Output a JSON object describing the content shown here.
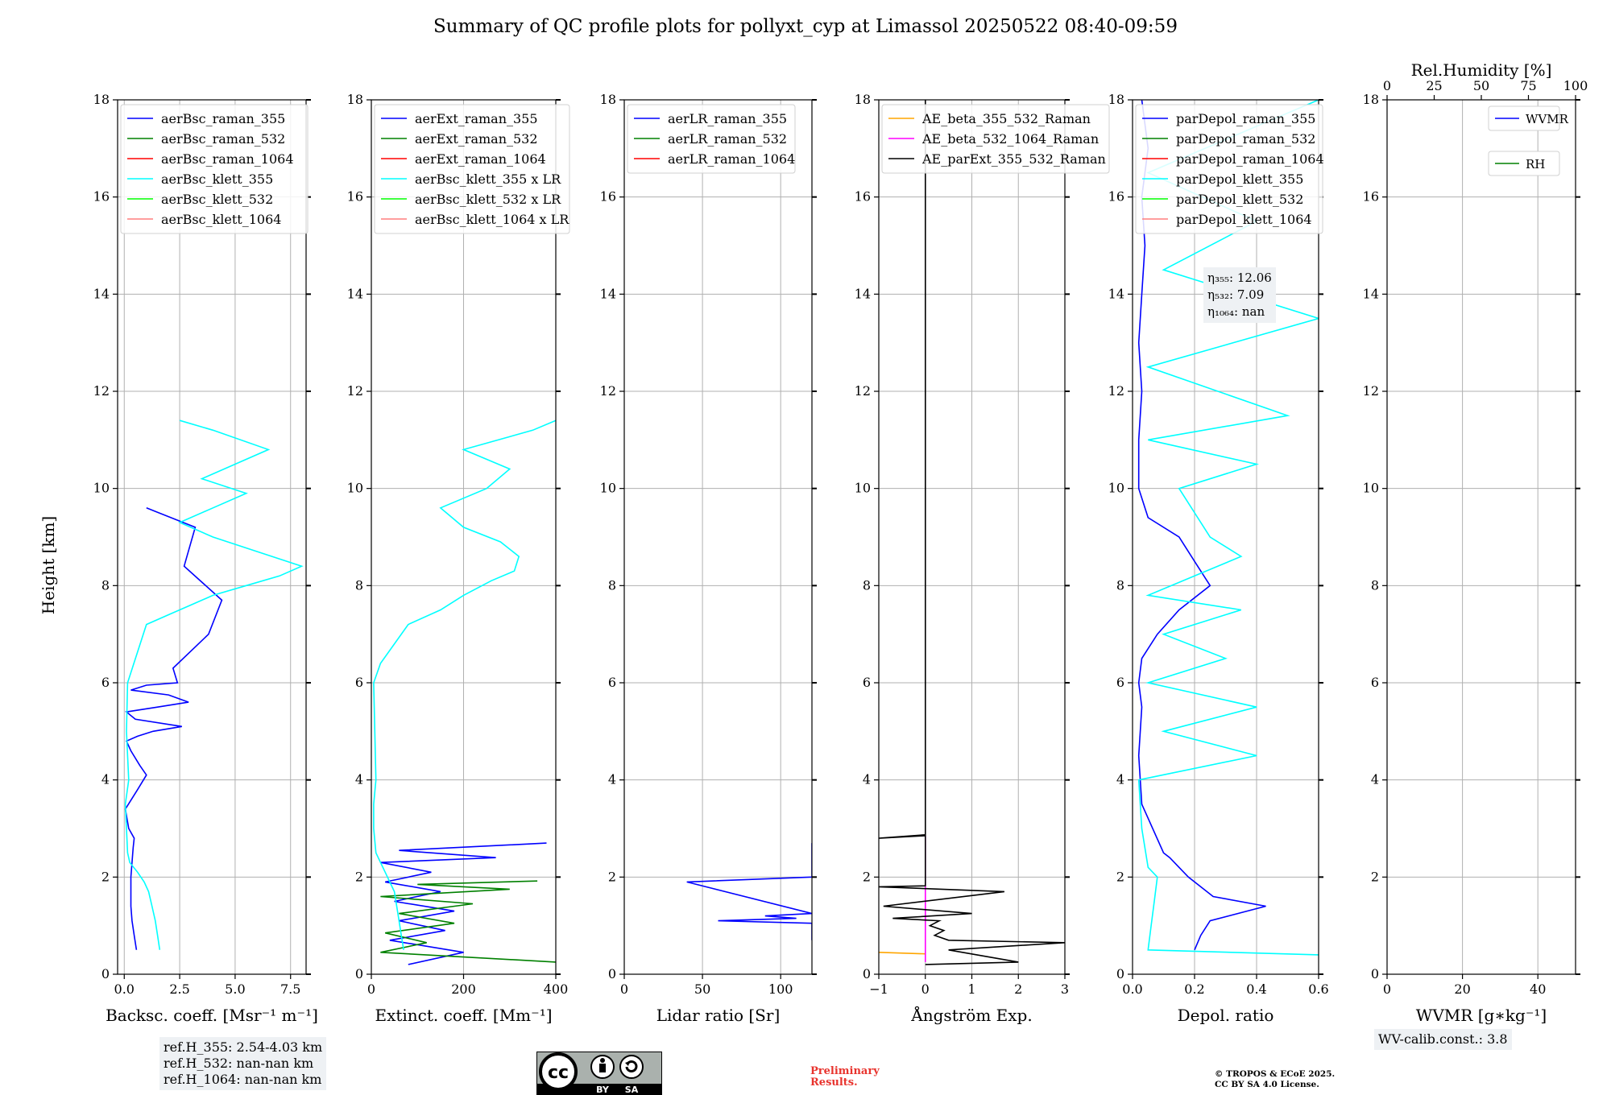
{
  "title": "Summary of QC profile plots for pollyxt_cyp at Limassol 20250522 08:40-09:59",
  "ylabel": "Height [km]",
  "ref_heights": [
    "ref.H_355: 2.54-4.03 km",
    "ref.H_532: nan-nan km",
    "ref.H_1064: nan-nan km"
  ],
  "wv_calib": "WV-calib.const.: 3.8",
  "eta_labels": [
    "η₃₅₅: 12.06",
    "η₅₃₂: 7.09",
    "η₁₀₆₄: nan"
  ],
  "preliminary": [
    "Preliminary",
    "Results."
  ],
  "copyright": [
    "© TROPOS & ECoE 2025.",
    "CC BY SA 4.0 License."
  ],
  "license_badge": {
    "cc": "cc",
    "by": "BY",
    "sa": "SA"
  },
  "colors": {
    "blue": "#0000ff",
    "green": "#008000",
    "red": "#ff0000",
    "cyan": "#00ffff",
    "lime": "#00ff00",
    "salmon": "#ff7f7f",
    "orange": "#ffa500",
    "magenta": "#ff00ff",
    "black": "#000000",
    "prelim_red": "#e8332d",
    "label_box": "#eef1f4"
  },
  "chart_data": [
    {
      "type": "line",
      "xlabel": "Backsc. coeff. [Msr⁻¹ m⁻¹]",
      "xlim": [
        -0.3,
        8.2
      ],
      "ylim": [
        0,
        18
      ],
      "xticks": [
        0,
        2.5,
        5,
        7.5
      ],
      "xtick_labels": [
        "0.0",
        "2.5",
        "5.0",
        "7.5"
      ],
      "yticks": [
        0,
        2,
        4,
        6,
        8,
        10,
        12,
        14,
        16,
        18
      ],
      "grid": true,
      "legend": "top-left",
      "legend_entries": [
        "aerBsc_raman_355",
        "aerBsc_raman_532",
        "aerBsc_raman_1064",
        "aerBsc_klett_355",
        "aerBsc_klett_532",
        "aerBsc_klett_1064"
      ],
      "legend_colors": [
        "#0000ff",
        "#008000",
        "#ff0000",
        "#00ffff",
        "#00ff00",
        "#ff7f7f"
      ],
      "series": [
        {
          "name": "aerBsc_raman_355",
          "color": "#0000ff",
          "x": [
            0.55,
            0.45,
            0.35,
            0.3,
            0.3,
            0.3,
            0.35,
            0.4,
            0.45,
            0.2,
            0.05,
            0.6,
            1.0,
            0.7,
            0.3,
            0.1,
            0.6,
            1.3,
            2.6,
            0.5,
            0.1,
            1.5,
            2.9,
            2.0,
            0.3,
            1.0,
            2.4,
            2.2,
            3.8,
            4.4,
            2.7,
            3.2,
            1.0
          ],
          "y": [
            0.5,
            0.8,
            1.1,
            1.4,
            1.7,
            2.0,
            2.3,
            2.6,
            2.8,
            3.0,
            3.4,
            3.8,
            4.1,
            4.3,
            4.6,
            4.8,
            4.9,
            5.0,
            5.1,
            5.25,
            5.4,
            5.5,
            5.6,
            5.75,
            5.85,
            5.95,
            6.0,
            6.3,
            7.0,
            7.7,
            8.4,
            9.2,
            9.6
          ]
        },
        {
          "name": "aerBsc_klett_355",
          "color": "#00ffff",
          "x": [
            1.6,
            1.5,
            1.4,
            1.25,
            1.1,
            0.9,
            0.6,
            0.25,
            0.15,
            0.1,
            0.05,
            0.2,
            0.1,
            0.15,
            1.0,
            2.0,
            3.0,
            4.0,
            5.5,
            7.0,
            8.0,
            6.0,
            4.0,
            2.5,
            4.0,
            5.5,
            3.5,
            5.0,
            6.5,
            4.0,
            2.5
          ],
          "y": [
            0.5,
            0.8,
            1.1,
            1.4,
            1.7,
            1.9,
            2.1,
            2.3,
            2.5,
            3.0,
            3.5,
            4.0,
            5.0,
            6.0,
            7.2,
            7.4,
            7.6,
            7.8,
            8.0,
            8.2,
            8.4,
            8.7,
            9.0,
            9.3,
            9.6,
            9.9,
            10.2,
            10.5,
            10.8,
            11.2,
            11.4
          ]
        }
      ]
    },
    {
      "type": "line",
      "xlabel": "Extinct. coeff. [Mm⁻¹]",
      "xlim": [
        0,
        400
      ],
      "ylim": [
        0,
        18
      ],
      "xticks": [
        0,
        200,
        400
      ],
      "xtick_labels": [
        "0",
        "200",
        "400"
      ],
      "yticks": [
        0,
        2,
        4,
        6,
        8,
        10,
        12,
        14,
        16,
        18
      ],
      "grid": true,
      "legend": "top-left",
      "legend_entries": [
        "aerExt_raman_355",
        "aerExt_raman_532",
        "aerExt_raman_1064",
        "aerBsc_klett_355 x LR",
        "aerBsc_klett_532 x LR",
        "aerBsc_klett_1064 x LR"
      ],
      "legend_colors": [
        "#0000ff",
        "#008000",
        "#ff0000",
        "#00ffff",
        "#00ff00",
        "#ff7f7f"
      ],
      "series": [
        {
          "name": "aerExt_raman_355",
          "color": "#0000ff",
          "x": [
            80,
            200,
            40,
            160,
            60,
            180,
            50,
            150,
            30,
            130,
            20,
            270,
            60,
            380
          ],
          "y": [
            0.2,
            0.45,
            0.7,
            0.9,
            1.1,
            1.3,
            1.5,
            1.7,
            1.9,
            2.1,
            2.3,
            2.4,
            2.55,
            2.7
          ]
        },
        {
          "name": "aerExt_raman_532",
          "color": "#008000",
          "x": [
            400,
            20,
            120,
            30,
            180,
            60,
            220,
            20,
            300,
            100,
            360
          ],
          "y": [
            0.25,
            0.45,
            0.65,
            0.85,
            1.05,
            1.25,
            1.45,
            1.6,
            1.75,
            1.85,
            1.92
          ]
        },
        {
          "name": "aerBsc_klett_355 x LR",
          "color": "#00ffff",
          "x": [
            70,
            65,
            60,
            55,
            50,
            40,
            30,
            20,
            10,
            5,
            5,
            10,
            5,
            20,
            80,
            150,
            200,
            260,
            310,
            320,
            280,
            200,
            150,
            250,
            300,
            200,
            350,
            400
          ],
          "y": [
            0.5,
            0.8,
            1.1,
            1.4,
            1.7,
            1.9,
            2.1,
            2.3,
            2.5,
            3.0,
            3.5,
            4.0,
            6.0,
            6.4,
            7.2,
            7.5,
            7.8,
            8.1,
            8.3,
            8.6,
            8.9,
            9.2,
            9.6,
            10.0,
            10.4,
            10.8,
            11.2,
            11.4
          ]
        }
      ]
    },
    {
      "type": "line",
      "xlabel": "Lidar ratio [Sr]",
      "xlim": [
        0,
        120
      ],
      "ylim": [
        0,
        18
      ],
      "xticks": [
        0,
        50,
        100
      ],
      "xtick_labels": [
        "0",
        "50",
        "100"
      ],
      "yticks": [
        0,
        2,
        4,
        6,
        8,
        10,
        12,
        14,
        16,
        18
      ],
      "grid": true,
      "legend": "top-left",
      "legend_entries": [
        "aerLR_raman_355",
        "aerLR_raman_532",
        "aerLR_raman_1064"
      ],
      "legend_colors": [
        "#0000ff",
        "#008000",
        "#ff0000"
      ],
      "series": [
        {
          "name": "aerLR_raman_355",
          "color": "#0000ff",
          "x": [
            120,
            120,
            60,
            110,
            90,
            120,
            40,
            120,
            120,
            120,
            120,
            120
          ],
          "y": [
            0.7,
            1.05,
            1.1,
            1.15,
            1.2,
            1.25,
            1.9,
            2.0,
            2.3,
            2.4,
            2.5,
            2.7
          ]
        }
      ]
    },
    {
      "type": "line",
      "xlabel": "Ångström Exp.",
      "xlim": [
        -1,
        3
      ],
      "ylim": [
        0,
        18
      ],
      "xticks": [
        -1,
        0,
        1,
        2,
        3
      ],
      "xtick_labels": [
        "−1",
        "0",
        "1",
        "2",
        "3"
      ],
      "yticks": [
        0,
        2,
        4,
        6,
        8,
        10,
        12,
        14,
        16,
        18
      ],
      "grid": true,
      "legend": "top-left",
      "legend_entries": [
        "AE_beta_355_532_Raman",
        "AE_beta_532_1064_Raman",
        "AE_parExt_355_532_Raman"
      ],
      "legend_colors": [
        "#ffa500",
        "#ff00ff",
        "#000000"
      ],
      "series": [
        {
          "name": "AE_beta_355_532_Raman",
          "color": "#ffa500",
          "x": [
            -1,
            0
          ],
          "y": [
            0.45,
            0.42
          ]
        },
        {
          "name": "AE_beta_532_1064_Raman",
          "color": "#ff00ff",
          "x": [
            0,
            0
          ],
          "y": [
            0.25,
            2.85
          ]
        },
        {
          "name": "AE_parExt_355_532_Raman",
          "color": "#000000",
          "x": [
            0,
            2.0,
            0.5,
            3.0,
            0.5,
            0.2,
            0.4,
            0.1,
            0.3,
            -0.7,
            1.0,
            -0.9,
            1.7,
            -1,
            0,
            0,
            -1,
            0,
            0
          ],
          "y": [
            0.2,
            0.25,
            0.5,
            0.65,
            0.7,
            0.8,
            0.9,
            1.0,
            1.1,
            1.15,
            1.25,
            1.4,
            1.7,
            1.8,
            1.82,
            2.85,
            2.8,
            2.87,
            18
          ]
        }
      ]
    },
    {
      "type": "line",
      "xlabel": "Depol. ratio",
      "xlim": [
        0,
        0.6
      ],
      "ylim": [
        0,
        18
      ],
      "xticks": [
        0,
        0.2,
        0.4,
        0.6
      ],
      "xtick_labels": [
        "0.0",
        "0.2",
        "0.4",
        "0.6"
      ],
      "yticks": [
        0,
        2,
        4,
        6,
        8,
        10,
        12,
        14,
        16,
        18
      ],
      "grid": true,
      "legend": "top-left",
      "legend_entries": [
        "parDepol_raman_355",
        "parDepol_raman_532",
        "parDepol_raman_1064",
        "parDepol_klett_355",
        "parDepol_klett_532",
        "parDepol_klett_1064"
      ],
      "legend_colors": [
        "#0000ff",
        "#008000",
        "#ff0000",
        "#00ffff",
        "#00ff00",
        "#ff7f7f"
      ],
      "series": [
        {
          "name": "parDepol_raman_355",
          "color": "#0000ff",
          "x": [
            0.2,
            0.22,
            0.25,
            0.43,
            0.26,
            0.22,
            0.18,
            0.15,
            0.12,
            0.1,
            0.03,
            0.02,
            0.03,
            0.02,
            0.03,
            0.08,
            0.15,
            0.25,
            0.2,
            0.15,
            0.05,
            0.02,
            0.02,
            0.03,
            0.02,
            0.03,
            0.04,
            0.03,
            0.05,
            0.03
          ],
          "y": [
            0.5,
            0.8,
            1.1,
            1.4,
            1.6,
            1.8,
            2.0,
            2.2,
            2.4,
            2.5,
            3.5,
            4.5,
            5.5,
            6.0,
            6.5,
            7.0,
            7.5,
            8.0,
            8.5,
            9.0,
            9.4,
            10.0,
            11.0,
            12.0,
            13.0,
            14.0,
            15.0,
            16.0,
            17.0,
            18.0
          ]
        },
        {
          "name": "parDepol_klett_355",
          "color": "#00ffff",
          "x": [
            0.6,
            0.05,
            0.06,
            0.07,
            0.08,
            0.05,
            0.03,
            0.02,
            0.4,
            0.1,
            0.4,
            0.05,
            0.3,
            0.1,
            0.35,
            0.05,
            0.2,
            0.35,
            0.25,
            0.2,
            0.15,
            0.4,
            0.05,
            0.5,
            0.05,
            0.6,
            0.1,
            0.4,
            0.05,
            0.6
          ],
          "y": [
            0.4,
            0.5,
            1.0,
            1.5,
            2.0,
            2.2,
            3.0,
            4.0,
            4.5,
            5.0,
            5.5,
            6.0,
            6.5,
            7.0,
            7.5,
            7.8,
            8.2,
            8.6,
            9.0,
            9.5,
            10.0,
            10.5,
            11.0,
            11.5,
            12.5,
            13.5,
            14.5,
            15.5,
            16.5,
            18.0
          ]
        }
      ]
    },
    {
      "type": "line",
      "xlabel": "WVMR [g∗kg⁻¹]",
      "xlim": [
        0,
        50
      ],
      "ylim": [
        0,
        18
      ],
      "xticks": [
        0,
        20,
        40
      ],
      "xtick_labels": [
        "0",
        "20",
        "40"
      ],
      "yticks": [
        0,
        2,
        4,
        6,
        8,
        10,
        12,
        14,
        16,
        18
      ],
      "grid": true,
      "legend": "top-right",
      "legend_entries": [
        "WVMR",
        "RH"
      ],
      "legend_colors": [
        "#0000ff",
        "#008000"
      ],
      "top_axis": {
        "label": "Rel.Humidity [%]",
        "xlim": [
          0,
          100
        ],
        "xticks": [
          0,
          25,
          50,
          75,
          100
        ],
        "xtick_labels": [
          "0",
          "25",
          "50",
          "75",
          "100"
        ]
      },
      "series": []
    }
  ]
}
